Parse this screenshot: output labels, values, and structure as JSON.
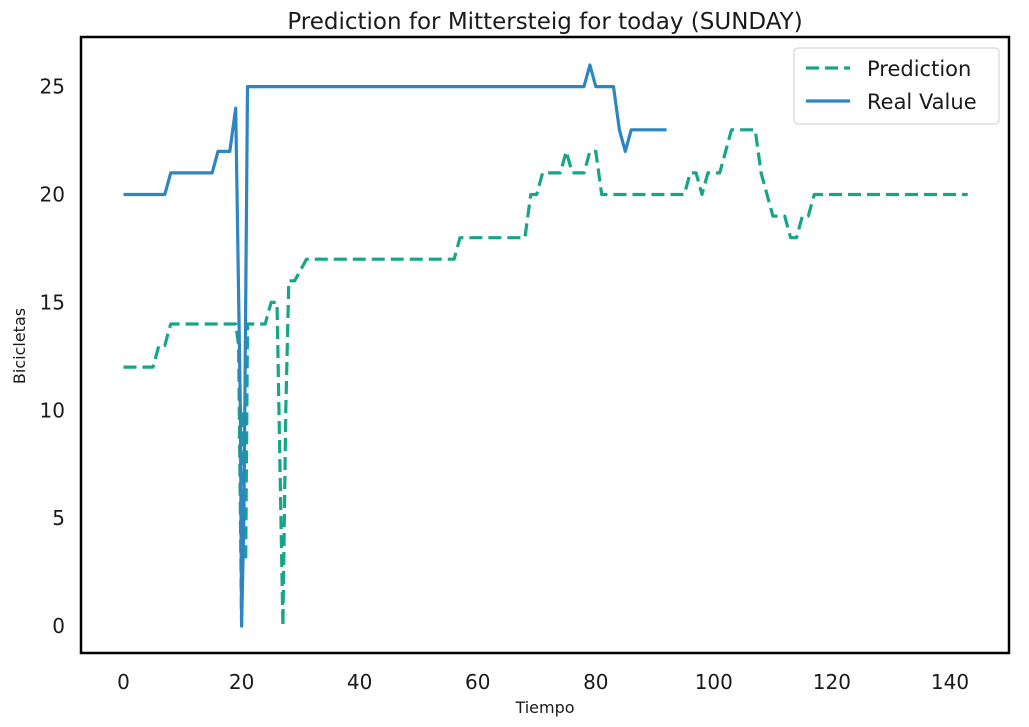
{
  "chart_data": {
    "type": "line",
    "title": "Prediction for Mittersteig for today (SUNDAY)",
    "xlabel": "Tiempo",
    "ylabel": "Bicicletas",
    "xlim": [
      -7.2,
      150
    ],
    "ylim": [
      -1.25,
      27.3
    ],
    "x_ticks": [
      0,
      20,
      40,
      60,
      80,
      100,
      120,
      140
    ],
    "y_ticks": [
      0,
      5,
      10,
      15,
      20,
      25
    ],
    "grid": false,
    "legend_position": "top-right",
    "series": [
      {
        "name": "Prediction",
        "color": "#17a589",
        "dash": "dashed",
        "points": [
          [
            0,
            12
          ],
          [
            5,
            12
          ],
          [
            6,
            13
          ],
          [
            7,
            13
          ],
          [
            8,
            14
          ],
          [
            19,
            14
          ],
          [
            19.5,
            13
          ],
          [
            20,
            0
          ],
          [
            20.3,
            10
          ],
          [
            20.7,
            3
          ],
          [
            21,
            14
          ],
          [
            24,
            14
          ],
          [
            25,
            15
          ],
          [
            26,
            15
          ],
          [
            27,
            0
          ],
          [
            27.5,
            10
          ],
          [
            28,
            16
          ],
          [
            29,
            16
          ],
          [
            31,
            17
          ],
          [
            56,
            17
          ],
          [
            57,
            18
          ],
          [
            68,
            18
          ],
          [
            69,
            20
          ],
          [
            70,
            20
          ],
          [
            71,
            21
          ],
          [
            74,
            21
          ],
          [
            75,
            22
          ],
          [
            76,
            21
          ],
          [
            78,
            21
          ],
          [
            79,
            22
          ],
          [
            80,
            22
          ],
          [
            81,
            20
          ],
          [
            95,
            20
          ],
          [
            96,
            21
          ],
          [
            97,
            21
          ],
          [
            98,
            20
          ],
          [
            99,
            21
          ],
          [
            101,
            21
          ],
          [
            103,
            23
          ],
          [
            107,
            23
          ],
          [
            108,
            21
          ],
          [
            110,
            19
          ],
          [
            112,
            19
          ],
          [
            113,
            18
          ],
          [
            114,
            18
          ],
          [
            115,
            19
          ],
          [
            116,
            19
          ],
          [
            117,
            20
          ],
          [
            143,
            20
          ]
        ]
      },
      {
        "name": "Real Value",
        "color": "#2e86c1",
        "dash": "solid",
        "points": [
          [
            0,
            20
          ],
          [
            7,
            20
          ],
          [
            8,
            21
          ],
          [
            15,
            21
          ],
          [
            16,
            22
          ],
          [
            18,
            22
          ],
          [
            19,
            24
          ],
          [
            19.8,
            10
          ],
          [
            20,
            0
          ],
          [
            20.4,
            5
          ],
          [
            21,
            25
          ],
          [
            78,
            25
          ],
          [
            79,
            26
          ],
          [
            80,
            25
          ],
          [
            83,
            25
          ],
          [
            84,
            23
          ],
          [
            85,
            22
          ],
          [
            86,
            23
          ],
          [
            92,
            23
          ]
        ]
      }
    ]
  }
}
